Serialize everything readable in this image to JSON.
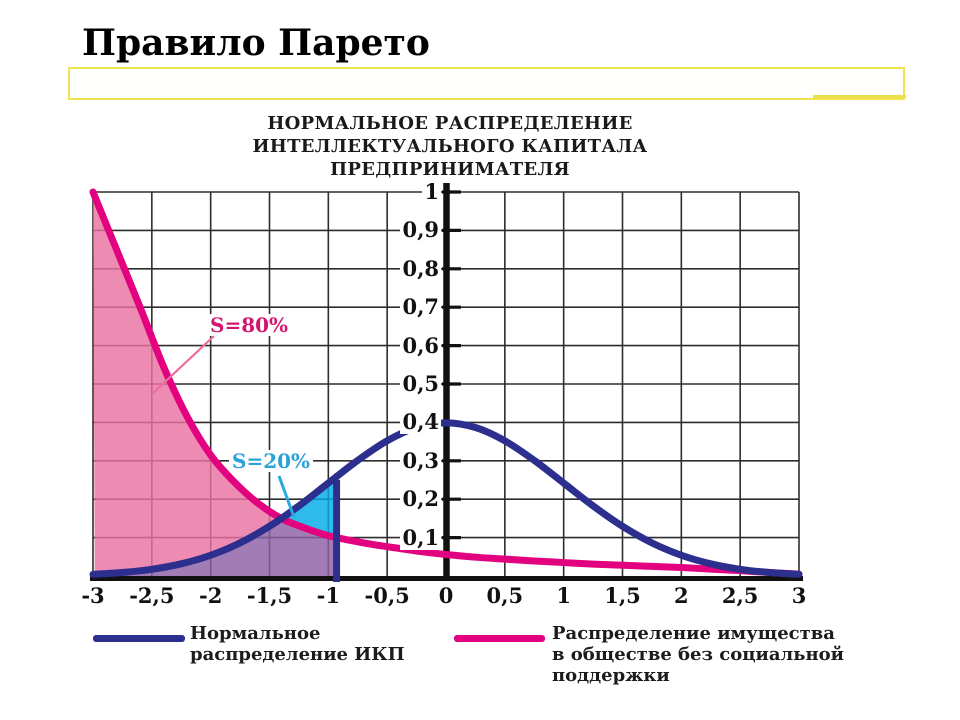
{
  "slide": {
    "title": "Правило Парето"
  },
  "chart": {
    "title_lines": [
      "НОРМАЛЬНОЕ РАСПРЕДЕЛЕНИЕ",
      "ИНТЕЛЛЕКТУАЛЬНОГО КАПИТАЛА ПРЕДПРИНИМАТЕЛЯ"
    ]
  },
  "legend": {
    "items": [
      {
        "id": "normal",
        "label_lines": [
          "Нормальное",
          "распределение ИКП"
        ],
        "color": "#2c2f8e"
      },
      {
        "id": "wealth",
        "label_lines": [
          "Распределение имущества",
          "в обществе без социальной",
          "поддержки"
        ],
        "color": "#e2017e"
      }
    ]
  },
  "chart_data": {
    "type": "line",
    "title": "НОРМАЛЬНОЕ РАСПРЕДЕЛЕНИЕ ИНТЕЛЛЕКТУАЛЬНОГО КАПИТАЛА ПРЕДПРИНИМАТЕЛЯ",
    "xlim": [
      -3,
      3
    ],
    "ylim": [
      0,
      1
    ],
    "grid": {
      "x_step": 0.5,
      "y_step": 0.1,
      "color": "#2e2e2e",
      "on": true
    },
    "axis_color": "#111111",
    "x_tick_values": [
      -3,
      -2.5,
      -2,
      -1.5,
      -1,
      -0.5,
      0,
      0.5,
      1,
      1.5,
      2,
      2.5,
      3
    ],
    "x_tick_labels": [
      "-3",
      "-2,5",
      "-2",
      "-1,5",
      "-1",
      "-0,5",
      "0",
      "0,5",
      "1",
      "1,5",
      "2",
      "2,5",
      "3"
    ],
    "y_tick_values": [
      1,
      0.9,
      0.8,
      0.7,
      0.6,
      0.5,
      0.4,
      0.3,
      0.2,
      0.1
    ],
    "y_tick_labels": [
      "1",
      "0,9",
      "0,8",
      "0,7",
      "0,6",
      "0,5",
      "0,4",
      "0,3",
      "0,2",
      "0,1"
    ],
    "series": [
      {
        "id": "normal",
        "name": "Нормальное распределение ИКП",
        "color": "#2c2f8e",
        "width": 7,
        "x": [
          -3,
          -2.75,
          -2.5,
          -2.25,
          -2,
          -1.75,
          -1.5,
          -1.25,
          -1,
          -0.75,
          -0.5,
          -0.25,
          0,
          0.25,
          0.5,
          0.75,
          1,
          1.25,
          1.5,
          1.75,
          2,
          2.25,
          2.5,
          2.75,
          3
        ],
        "y": [
          0.0044,
          0.0091,
          0.0175,
          0.0317,
          0.054,
          0.0863,
          0.1295,
          0.1826,
          0.242,
          0.3011,
          0.3521,
          0.3867,
          0.3989,
          0.3867,
          0.3521,
          0.3011,
          0.242,
          0.1826,
          0.1295,
          0.0863,
          0.054,
          0.0317,
          0.0175,
          0.0091,
          0.0044
        ]
      },
      {
        "id": "wealth",
        "name": "Распределение имущества в обществе без социальной поддержки",
        "color": "#e2017e",
        "width": 7,
        "x": [
          -3,
          -2.8,
          -2.6,
          -2.4,
          -2.2,
          -2,
          -1.8,
          -1.6,
          -1.4,
          -1.2,
          -1,
          -0.8,
          -0.6,
          -0.4,
          -0.2,
          0,
          0.25,
          0.5,
          0.75,
          1,
          1.25,
          1.5,
          1.75,
          2,
          2.25,
          2.5,
          2.75,
          3
        ],
        "y": [
          1.0,
          0.85,
          0.7,
          0.545,
          0.415,
          0.315,
          0.245,
          0.19,
          0.15,
          0.125,
          0.105,
          0.092,
          0.081,
          0.072,
          0.063,
          0.056,
          0.049,
          0.044,
          0.039,
          0.035,
          0.031,
          0.028,
          0.025,
          0.022,
          0.018,
          0.014,
          0.009,
          0.005
        ]
      }
    ],
    "areas": [
      {
        "id": "s80-pink",
        "label": "S=80%",
        "fill": "#ea71a2",
        "upper": "wealth",
        "lower": "normal",
        "x_from": -3,
        "x_to": -1.405
      },
      {
        "id": "overlap-purple",
        "label": "",
        "fill": "#8d5fa3",
        "upper": "min",
        "lower": "zero",
        "x_from": -3,
        "x_to": -0.93
      },
      {
        "id": "s20-cyan",
        "label": "S=20%",
        "fill": "#00abe5",
        "upper": "normal",
        "lower": "wealth",
        "x_from": -1.405,
        "x_to": -0.93
      }
    ],
    "annotations": {
      "s80": {
        "text": "S=80%",
        "color": "#d4156f"
      },
      "s20": {
        "text": "S=20%",
        "color": "#2aa2da"
      },
      "vertical_line_x": -0.93,
      "vertical_line_color": "#2c2f8e"
    }
  }
}
